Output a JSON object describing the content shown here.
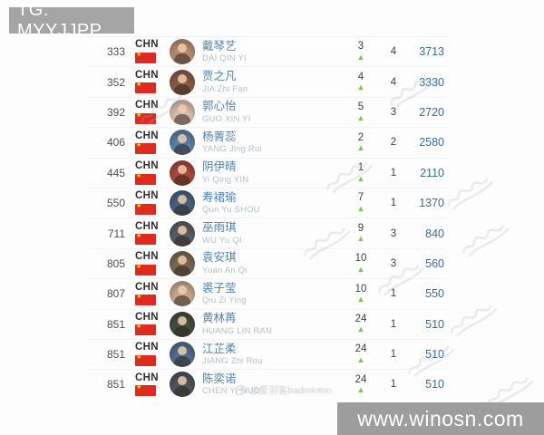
{
  "header": {
    "tag": "TG: MYYJJPP"
  },
  "site_watermark": {
    "text": "www.winosn.com"
  },
  "weibo_watermark": {
    "text": "@爱羽客badminton"
  },
  "colors": {
    "points_blue": "#3a6aa6",
    "name_blue": "#5183b8",
    "up_green": "#72ce38",
    "flag_red": "#de2a1f",
    "tag_gray": "#a5a5a5",
    "watermark_gray": "#8c8c8c"
  },
  "table": {
    "rows": [
      {
        "rank": "333",
        "country": "CHN",
        "name_cn": "戴琴艺",
        "name_en": "DAI QIN YI",
        "change": "3",
        "trend": "up",
        "events": "4",
        "points": "3713",
        "avatar_bg": "#b98d72"
      },
      {
        "rank": "352",
        "country": "CHN",
        "name_cn": "贾之凡",
        "name_en": "JIA Zhi Fan",
        "change": "4",
        "trend": "up",
        "events": "4",
        "points": "3330",
        "avatar_bg": "#8a5c48"
      },
      {
        "rank": "392",
        "country": "CHN",
        "name_cn": "郭心怡",
        "name_en": "GUO XIN YI",
        "change": "5",
        "trend": "up",
        "events": "3",
        "points": "2720",
        "avatar_bg": "#d9bfae"
      },
      {
        "rank": "406",
        "country": "CHN",
        "name_cn": "杨菁蕊",
        "name_en": "YANG Jing Rui",
        "change": "2",
        "trend": "up",
        "events": "2",
        "points": "2580",
        "avatar_bg": "#5b82a8"
      },
      {
        "rank": "445",
        "country": "CHN",
        "name_cn": "阴伊晴",
        "name_en": "Yi Qing YIN",
        "change": "1",
        "trend": "up",
        "events": "1",
        "points": "2110",
        "avatar_bg": "#a84a3c"
      },
      {
        "rank": "550",
        "country": "CHN",
        "name_cn": "寿裙瑜",
        "name_en": "Qun Yu SHOU",
        "change": "7",
        "trend": "up",
        "events": "1",
        "points": "1370",
        "avatar_bg": "#4a6280"
      },
      {
        "rank": "711",
        "country": "CHN",
        "name_cn": "巫雨琪",
        "name_en": "WU Yu QI",
        "change": "9",
        "trend": "up",
        "events": "3",
        "points": "840",
        "avatar_bg": "#5a5f66"
      },
      {
        "rank": "805",
        "country": "CHN",
        "name_cn": "袁安琪",
        "name_en": "Yuan An Qi",
        "change": "10",
        "trend": "up",
        "events": "3",
        "points": "560",
        "avatar_bg": "#7a6a55"
      },
      {
        "rank": "807",
        "country": "CHN",
        "name_cn": "裘子莹",
        "name_en": "Qiu Zi Ying",
        "change": "10",
        "trend": "up",
        "events": "1",
        "points": "550",
        "avatar_bg": "#c7a98e"
      },
      {
        "rank": "851",
        "country": "CHN",
        "name_cn": "黄林苒",
        "name_en": "HUANG LIN RAN",
        "change": "24",
        "trend": "up",
        "events": "1",
        "points": "510",
        "avatar_bg": "#44503f"
      },
      {
        "rank": "851",
        "country": "CHN",
        "name_cn": "江芷柔",
        "name_en": "JIANG Zhi Rou",
        "change": "24",
        "trend": "up",
        "events": "1",
        "points": "510",
        "avatar_bg": "#51708f"
      },
      {
        "rank": "851",
        "country": "CHN",
        "name_cn": "陈奕诺",
        "name_en": "CHEN YI NUO",
        "change": "24",
        "trend": "up",
        "events": "1",
        "points": "510",
        "avatar_bg": "#4e565e"
      }
    ]
  }
}
